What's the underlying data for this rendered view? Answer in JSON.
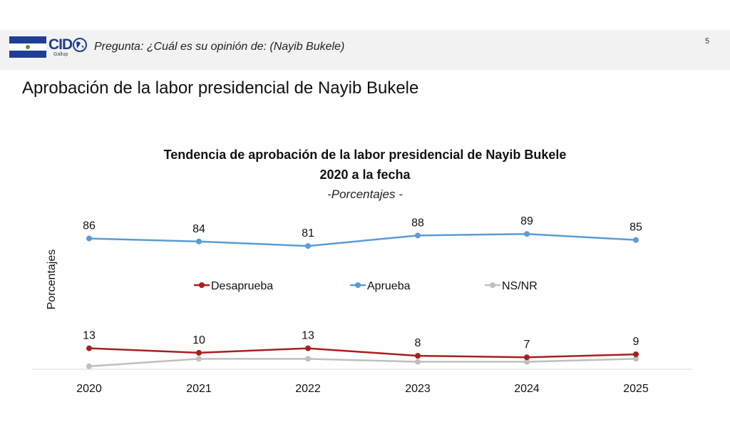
{
  "header": {
    "logo_text": "CID",
    "logo_sub": "Gallup",
    "question": "Pregunta: ¿Cuál es su opinión de:  (Nayib Bukele)",
    "page_number": "5",
    "colors": {
      "flag_blue": "#1f3f93",
      "flag_white": "#ffffff",
      "logo": "#1d3e8a"
    }
  },
  "slide_title": "Aprobación de la labor presidencial de Nayib Bukele",
  "chart_data": {
    "type": "line",
    "title": "Tendencia de aprobación de la labor presidencial de Nayib Bukele",
    "title_line2": "2020 a la fecha",
    "subtitle": "-Porcentajes -",
    "xlabel": "",
    "ylabel": "Porcentajes",
    "categories": [
      "2020",
      "2021",
      "2022",
      "2023",
      "2024",
      "2025"
    ],
    "ylim": [
      0,
      100
    ],
    "grid": false,
    "legend": "center",
    "series": [
      {
        "name": "Desaprueba",
        "values": [
          13,
          10,
          13,
          8,
          7,
          9
        ],
        "color": "#a81f1f",
        "labels": true
      },
      {
        "name": "Aprueba",
        "values": [
          86,
          84,
          81,
          88,
          89,
          85
        ],
        "color": "#5b9bd5",
        "labels": true
      },
      {
        "name": "NS/NR",
        "values": [
          1,
          6,
          6,
          4,
          4,
          6
        ],
        "color": "#bfbfbf",
        "labels": false
      }
    ]
  }
}
